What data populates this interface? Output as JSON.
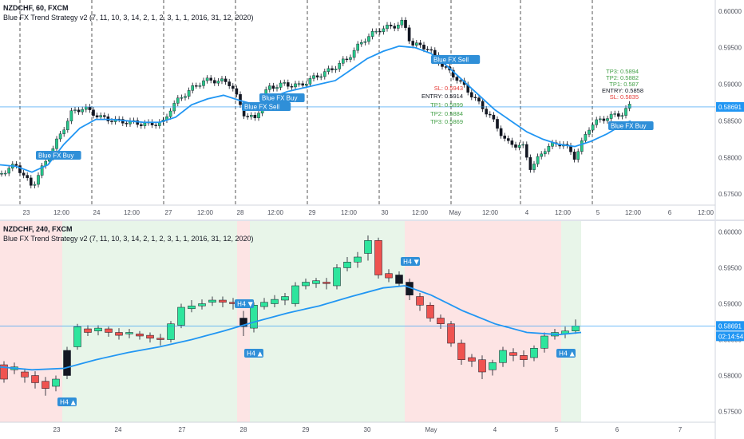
{
  "top": {
    "symbol": "NZDCHF, 60, FXCM",
    "indicator": "Blue FX Trend Strategy v2 (7, 11, 10, 3, 14, 2, 1, 2, 3, 1, 1, 2016, 31, 12, 2020)",
    "price_tag": "0.58691",
    "y_ticks": [
      "0.60000",
      "0.59500",
      "0.59000",
      "0.58500",
      "0.58000",
      "0.57500"
    ],
    "x_ticks": [
      "23",
      "12:00",
      "24",
      "12:00",
      "27",
      "12:00",
      "28",
      "12:00",
      "29",
      "12:00",
      "30",
      "12:00",
      "May",
      "12:00",
      "4",
      "12:00",
      "5",
      "12:00",
      "6",
      "12:00"
    ],
    "labels": {
      "buy1": "Blue FX Buy",
      "sell1": "Blue FX Sell",
      "buy2": "Blue FX Buy",
      "sell2": "Blue FX Sell",
      "buy3": "Blue FX Buy"
    },
    "trade1": {
      "sl": "SL: 0.5943",
      "entry": "ENTRY: 0.5914",
      "tp1": "TP1: 0.5899",
      "tp2": "TP2: 0.5884",
      "tp3": "TP3: 0.5869"
    },
    "trade2": {
      "tp3": "TP3: 0.5894",
      "tp2": "TP2: 0.5882",
      "tp1": "TP1: 0.587",
      "entry": "ENTRY: 0.5858",
      "sl": "SL: 0.5835"
    },
    "colors": {
      "up": "#26c78a",
      "down": "#131722",
      "ma": "#2196f3",
      "sl": "#e53935",
      "tp": "#43a047",
      "entry": "#131722",
      "label_bg": "#2f8fd8"
    }
  },
  "bottom": {
    "symbol": "NZDCHF, 240, FXCM",
    "indicator": "Blue FX Trend Strategy v2 (7, 11, 10, 3, 14, 2, 1, 2, 3, 1, 1, 2016, 31, 12, 2020)",
    "price_tag": "0.58691",
    "countdown": "02:14:54",
    "y_ticks": [
      "0.60000",
      "0.59500",
      "0.59000",
      "0.58500",
      "0.58000",
      "0.57500"
    ],
    "x_ticks": [
      "23",
      "24",
      "27",
      "28",
      "29",
      "30",
      "May",
      "4",
      "5",
      "6",
      "7"
    ],
    "labels": {
      "h4_buy1": "H4 ▲",
      "h4_sell1": "H4 ▼",
      "h4_buy2": "H4 ▲",
      "h4_sell2": "H4 ▼",
      "h4_buy3": "H4 ▲"
    },
    "colors": {
      "up": "#2ee59d",
      "down": "#ef5350",
      "signal": "#131722",
      "ma": "#2196f3",
      "bull_zone": "#e8f5e9",
      "bear_zone": "#fde4e4",
      "label_bg": "#2f8fd8"
    }
  },
  "chart_data": [
    {
      "type": "candlestick",
      "symbol": "NZDCHF",
      "timeframe": "60",
      "ylim": [
        0.5735,
        0.6015
      ],
      "x_ticks": [
        "23",
        "12:00",
        "24",
        "12:00",
        "27",
        "12:00",
        "28",
        "12:00",
        "29",
        "12:00",
        "30",
        "12:00",
        "May",
        "12:00",
        "4",
        "12:00",
        "5",
        "12:00",
        "6",
        "12:00"
      ],
      "series_ma_points": [
        [
          0,
          0.579
        ],
        [
          20,
          0.5788
        ],
        [
          40,
          0.578
        ],
        [
          60,
          0.579
        ],
        [
          80,
          0.5818
        ],
        [
          100,
          0.584
        ],
        [
          120,
          0.5852
        ],
        [
          140,
          0.5852
        ],
        [
          160,
          0.585
        ],
        [
          180,
          0.5848
        ],
        [
          200,
          0.5848
        ],
        [
          220,
          0.5855
        ],
        [
          240,
          0.5872
        ],
        [
          260,
          0.588
        ],
        [
          280,
          0.5885
        ],
        [
          300,
          0.5878
        ],
        [
          320,
          0.5872
        ],
        [
          340,
          0.5882
        ],
        [
          360,
          0.589
        ],
        [
          380,
          0.5895
        ],
        [
          400,
          0.59
        ],
        [
          420,
          0.5905
        ],
        [
          440,
          0.592
        ],
        [
          460,
          0.5935
        ],
        [
          480,
          0.5945
        ],
        [
          500,
          0.5952
        ],
        [
          520,
          0.595
        ],
        [
          540,
          0.5942
        ],
        [
          560,
          0.5925
        ],
        [
          580,
          0.5905
        ],
        [
          600,
          0.5885
        ],
        [
          620,
          0.5865
        ],
        [
          640,
          0.585
        ],
        [
          660,
          0.5835
        ],
        [
          680,
          0.5825
        ],
        [
          700,
          0.5818
        ],
        [
          720,
          0.5815
        ],
        [
          740,
          0.5822
        ],
        [
          760,
          0.5832
        ],
        [
          780,
          0.5845
        ],
        [
          790,
          0.585
        ]
      ],
      "price_levels": {
        "last": 0.58691
      }
    },
    {
      "type": "candlestick",
      "symbol": "NZDCHF",
      "timeframe": "240",
      "ylim": [
        0.5735,
        0.6015
      ],
      "x_ticks": [
        "23",
        "24",
        "27",
        "28",
        "29",
        "30",
        "May",
        "4",
        "5",
        "6",
        "7"
      ],
      "price_levels": {
        "last": 0.58691
      }
    }
  ]
}
